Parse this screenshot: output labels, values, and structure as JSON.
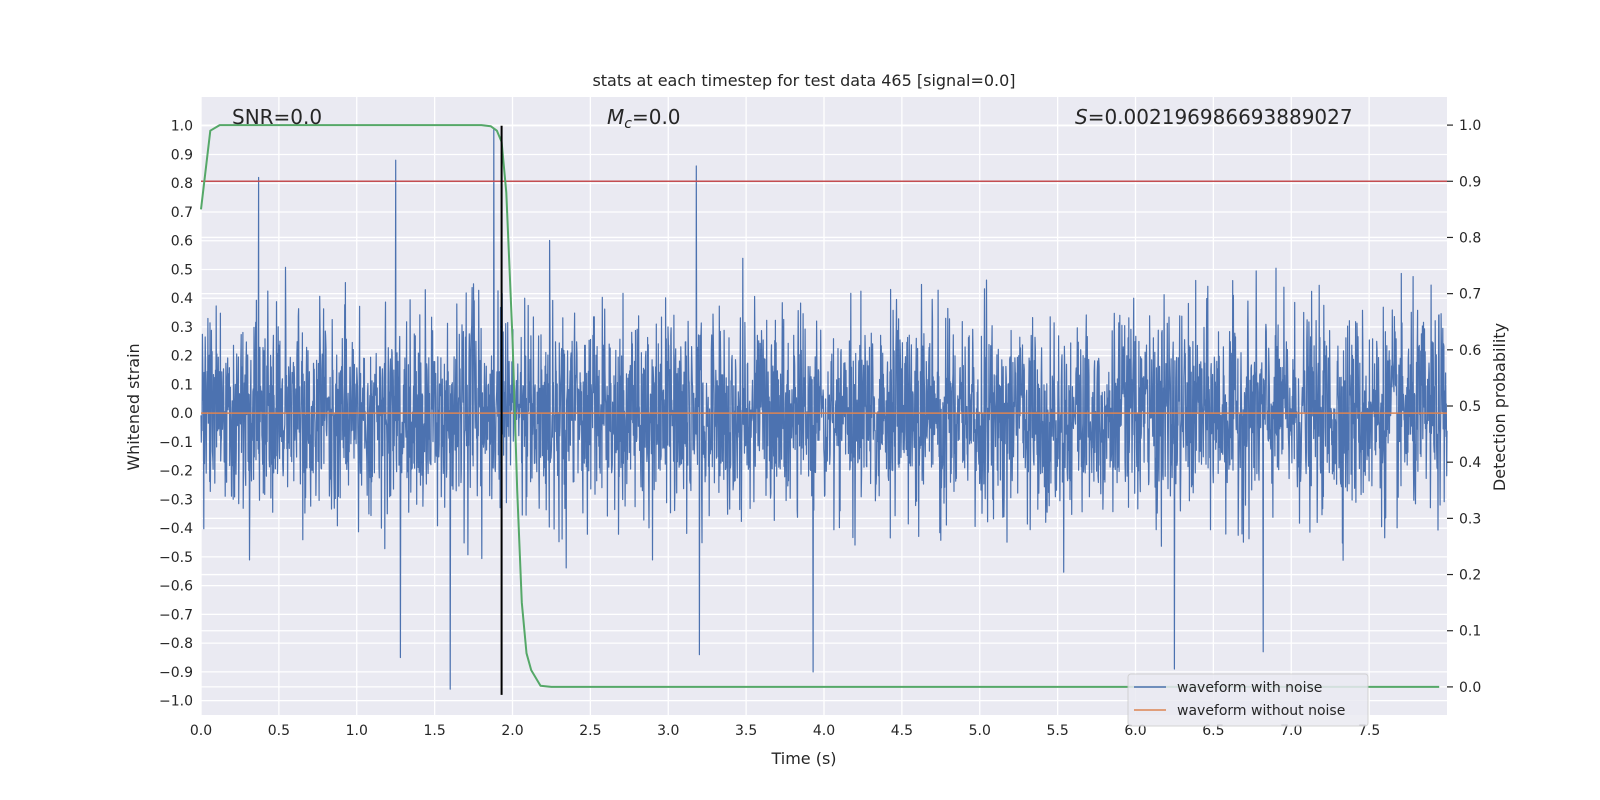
{
  "chart_data": {
    "type": "line",
    "title": "stats at each timestep for test data 465 [signal=0.0]",
    "xlabel": "Time (s)",
    "ylabel_left": "Whitened strain",
    "ylabel_right": "Detection probability",
    "xlim": [
      0.0,
      8.0
    ],
    "ylim_left": [
      -1.05,
      1.1
    ],
    "ylim_right": [
      -0.05,
      1.05
    ],
    "x_ticks": [
      "0.0",
      "0.5",
      "1.0",
      "1.5",
      "2.0",
      "2.5",
      "3.0",
      "3.5",
      "4.0",
      "4.5",
      "5.0",
      "5.5",
      "6.0",
      "6.5",
      "7.0",
      "7.5"
    ],
    "y_ticks_left": [
      "1.0",
      "0.9",
      "0.8",
      "0.7",
      "0.6",
      "0.5",
      "0.4",
      "0.3",
      "0.2",
      "0.1",
      "0.0",
      "-0.1",
      "-0.2",
      "-0.3",
      "-0.4",
      "-0.5",
      "-0.6",
      "-0.7",
      "-0.8",
      "-0.9",
      "-1.0"
    ],
    "y_ticks_right": [
      "1.0",
      "0.9",
      "0.8",
      "0.7",
      "0.6",
      "0.5",
      "0.4",
      "0.3",
      "0.2",
      "0.1",
      "0.0"
    ],
    "annotations": {
      "snr": "SNR=0.0",
      "mc_symbol": "M",
      "mc_sub": "c",
      "mc_value": "=0.0",
      "s_symbol": "S",
      "s_value": "=0.002196986693889027"
    },
    "series": [
      {
        "name": "waveform with noise",
        "color": "#4c72b0",
        "axis": "left",
        "x_range": [
          0.0,
          8.0
        ],
        "sample_rate_hz": 2048,
        "noise_band_approx": [
          -0.6,
          0.6
        ],
        "notable_peaks": [
          {
            "x": 1.25,
            "y": 0.88
          },
          {
            "x": 1.88,
            "y": 0.99
          },
          {
            "x": 3.18,
            "y": 0.86
          },
          {
            "x": 0.37,
            "y": 0.82
          },
          {
            "x": 1.6,
            "y": -0.96
          },
          {
            "x": 6.25,
            "y": -0.89
          },
          {
            "x": 3.93,
            "y": -0.9
          },
          {
            "x": 6.82,
            "y": -0.83
          },
          {
            "x": 1.28,
            "y": -0.85
          },
          {
            "x": 3.2,
            "y": -0.84
          }
        ]
      },
      {
        "name": "waveform without noise",
        "color": "#dd8452",
        "axis": "left",
        "x": [
          0.0,
          8.0
        ],
        "y": [
          0.0,
          0.0
        ]
      }
    ],
    "detection_probability": {
      "color": "#55a868",
      "axis": "right",
      "x": [
        0.0,
        0.06,
        0.12,
        0.5,
        1.0,
        1.5,
        1.8,
        1.86,
        1.9,
        1.93,
        1.96,
        2.0,
        2.03,
        2.06,
        2.09,
        2.12,
        2.18,
        2.25,
        3.0,
        7.5,
        7.95
      ],
      "y": [
        0.85,
        0.99,
        1.0,
        1.0,
        1.0,
        1.0,
        1.0,
        0.998,
        0.99,
        0.97,
        0.88,
        0.62,
        0.35,
        0.15,
        0.06,
        0.03,
        0.002,
        0.0,
        0.0,
        0.0,
        0.0
      ]
    },
    "threshold": {
      "value": 0.9,
      "axis": "right",
      "color": "#c44e52"
    },
    "event_marker": {
      "x": 1.93,
      "y_range": [
        -0.98,
        1.0
      ],
      "color": "#000000"
    },
    "legend": {
      "placement": "lower-right",
      "entries": [
        {
          "label": "waveform with noise",
          "color": "#4c72b0"
        },
        {
          "label": "waveform without noise",
          "color": "#dd8452"
        }
      ]
    },
    "grid": true,
    "style": {
      "background": "#eaeaf2",
      "grid_color": "#ffffff"
    }
  }
}
